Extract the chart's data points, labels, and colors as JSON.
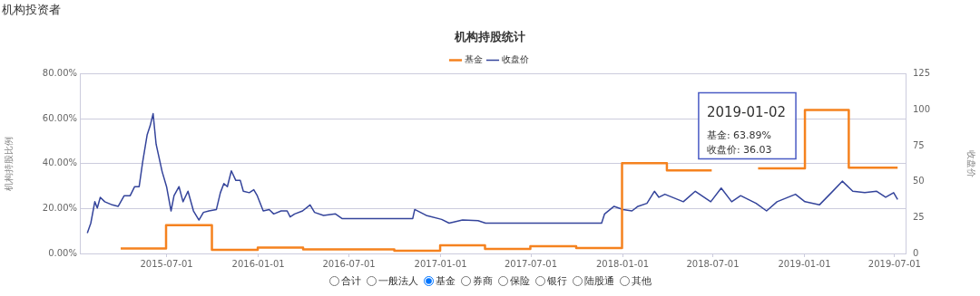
{
  "chart_data": {
    "type": "line",
    "title": "机构持股统计",
    "subtitle": "机构投资者",
    "ylabel": "机构持股比例",
    "y2label": "收盘价",
    "xlim": [
      "2015-01-08",
      "2019-07-23"
    ],
    "xticks": [
      "2015-07-01",
      "2016-01-01",
      "2016-07-01",
      "2017-01-01",
      "2017-07-01",
      "2018-01-01",
      "2018-07-01",
      "2019-01-01",
      "2019-07-01"
    ],
    "ylim": [
      0,
      80
    ],
    "yticks": [
      {
        "value": 0,
        "label": "0.00%"
      },
      {
        "value": 20,
        "label": "20.00%"
      },
      {
        "value": 40,
        "label": "40.00%"
      },
      {
        "value": 60,
        "label": "60.00%"
      },
      {
        "value": 80,
        "label": "80.00%"
      }
    ],
    "y2lim": [
      0,
      125
    ],
    "y2ticks": [
      0,
      25,
      50,
      75,
      100,
      125
    ],
    "grid": "y",
    "legend": "top",
    "series": [
      {
        "name": "基金",
        "type": "step",
        "color": "#f5821f",
        "x": [
          "2015-03-31",
          "2015-06-30",
          "2015-09-30",
          "2015-12-31",
          "2016-03-31",
          "2016-09-30",
          "2016-12-31",
          "2017-03-31",
          "2017-06-30",
          "2017-09-30",
          "2017-12-31",
          "2018-03-31",
          "2018-06-29",
          "2018-06-30",
          "2018-09-30",
          "2019-01-02",
          "2019-03-31",
          "2019-07-07"
        ],
        "values": [
          2.2,
          12.6,
          1.6,
          2.6,
          1.8,
          1.2,
          3.6,
          2.0,
          3.2,
          2.4,
          40.2,
          37.0,
          37.0,
          null,
          37.9,
          63.89,
          38.2,
          38.2
        ]
      },
      {
        "name": "收盘价",
        "type": "line",
        "axis": "y2",
        "color": "#34449b",
        "x": [
          "2015-01-23",
          "2015-01-30",
          "2015-02-07",
          "2015-02-12",
          "2015-02-18",
          "2015-02-27",
          "2015-03-14",
          "2015-03-26",
          "2015-04-07",
          "2015-04-19",
          "2015-04-28",
          "2015-05-07",
          "2015-05-14",
          "2015-05-23",
          "2015-05-29",
          "2015-06-04",
          "2015-06-10",
          "2015-06-22",
          "2015-07-01",
          "2015-07-10",
          "2015-07-16",
          "2015-07-26",
          "2015-08-03",
          "2015-08-13",
          "2015-08-24",
          "2015-09-04",
          "2015-09-13",
          "2015-09-24",
          "2015-10-09",
          "2015-10-17",
          "2015-10-24",
          "2015-10-31",
          "2015-11-08",
          "2015-11-17",
          "2015-11-26",
          "2015-12-02",
          "2015-12-14",
          "2015-12-23",
          "2015-12-30",
          "2016-01-11",
          "2016-01-23",
          "2016-02-01",
          "2016-02-16",
          "2016-02-28",
          "2016-03-05",
          "2016-03-14",
          "2016-03-30",
          "2016-04-14",
          "2016-04-23",
          "2016-05-11",
          "2016-06-04",
          "2016-06-17",
          "2016-11-06",
          "2016-11-10",
          "2016-12-03",
          "2017-01-03",
          "2017-01-18",
          "2017-02-14",
          "2017-03-17",
          "2017-04-01",
          "2017-11-20",
          "2017-11-26",
          "2017-12-15",
          "2018-01-02",
          "2018-01-20",
          "2018-02-01",
          "2018-02-19",
          "2018-03-06",
          "2018-03-15",
          "2018-03-27",
          "2018-05-03",
          "2018-05-27",
          "2018-06-27",
          "2018-07-18",
          "2018-08-08",
          "2018-08-26",
          "2018-09-26",
          "2018-10-17",
          "2018-11-07",
          "2018-12-14",
          "2019-01-02",
          "2019-01-31",
          "2019-02-24",
          "2019-03-18",
          "2019-04-08",
          "2019-05-02",
          "2019-05-26",
          "2019-06-13",
          "2019-06-29",
          "2019-07-07"
        ],
        "values": [
          14.2,
          21.1,
          36,
          31.7,
          39.1,
          36,
          33.8,
          32.8,
          40.2,
          40.2,
          46.5,
          46.5,
          63.5,
          82.5,
          88.8,
          97.3,
          76.1,
          57.1,
          46.5,
          29.6,
          40.2,
          46.5,
          36,
          43.3,
          29.6,
          23.3,
          28.6,
          29.6,
          30.6,
          42.3,
          48.7,
          46.5,
          57.5,
          50.8,
          50.8,
          43.3,
          42.3,
          44.4,
          40.2,
          29.6,
          30.6,
          27.5,
          29.6,
          29.6,
          25.4,
          27.5,
          29.6,
          33.8,
          28.6,
          26.5,
          27.5,
          24.3,
          24.3,
          30.6,
          26.5,
          23.7,
          21.1,
          23.3,
          22.8,
          21.1,
          21.1,
          27.5,
          32.8,
          30.6,
          29.6,
          32.8,
          34.9,
          43.3,
          39.1,
          41.2,
          36,
          43.3,
          36,
          45.5,
          36,
          40.2,
          34.9,
          29.6,
          36,
          41.2,
          36.03,
          33.8,
          42.3,
          50.3,
          43.3,
          42.3,
          43.3,
          39.1,
          42.3,
          37.6
        ]
      }
    ],
    "annotations": [
      {
        "text": "2019-01-02\n基金: 63.89%\n收盘价: 36.03",
        "x": "2019-01-02",
        "y": 63.89
      },
      "合计",
      "一般法人",
      "基金",
      "券商",
      "保险",
      "银行",
      "陆股通",
      "其他"
    ]
  }
}
